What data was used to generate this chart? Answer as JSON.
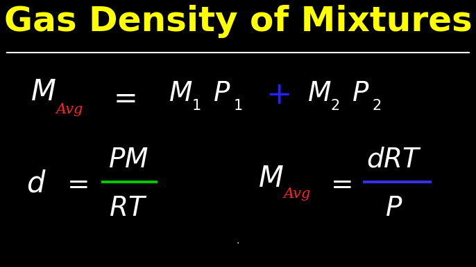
{
  "background_color": "#000000",
  "title": "Gas Density of Mixtures",
  "title_color": "#FFFF00",
  "title_fontsize": 36,
  "separator_color": "#FFFFFF",
  "white": "#FFFFFF",
  "red": "#FF2222",
  "blue": "#2222FF",
  "green": "#00CC00",
  "blue_line": "#3333FF",
  "formula_fs": 22,
  "sub_fs": 12
}
